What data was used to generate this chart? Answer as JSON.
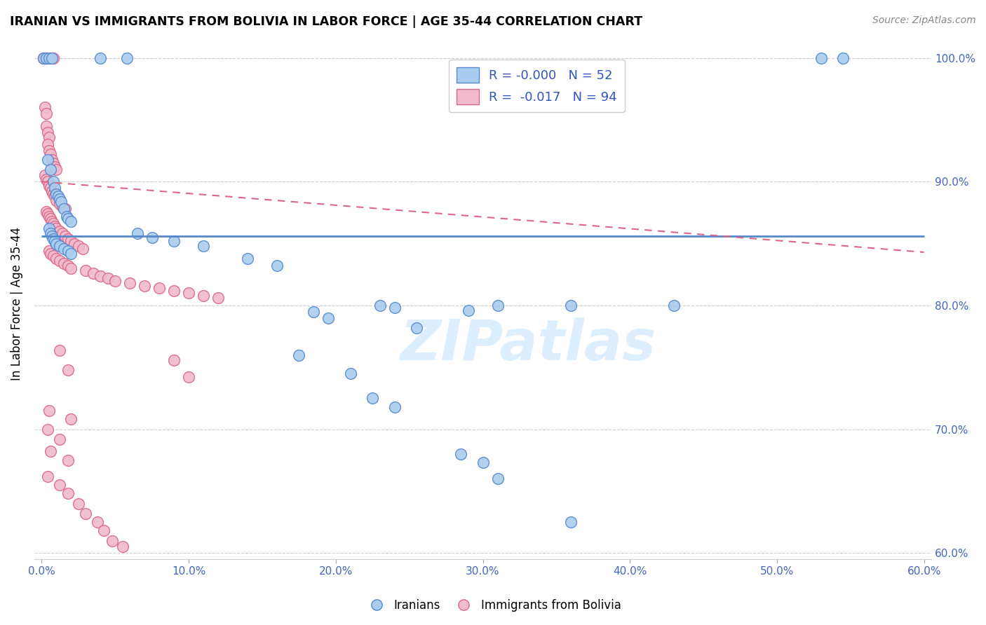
{
  "title": "IRANIAN VS IMMIGRANTS FROM BOLIVIA IN LABOR FORCE | AGE 35-44 CORRELATION CHART",
  "source": "Source: ZipAtlas.com",
  "ylabel": "In Labor Force | Age 35-44",
  "xlim": [
    -0.005,
    0.605
  ],
  "ylim": [
    0.595,
    1.008
  ],
  "xticks": [
    0.0,
    0.1,
    0.2,
    0.3,
    0.4,
    0.5,
    0.6
  ],
  "xticklabels": [
    "0.0%",
    "10.0%",
    "20.0%",
    "30.0%",
    "40.0%",
    "50.0%",
    "60.0%"
  ],
  "yticks": [
    0.6,
    0.7,
    0.8,
    0.9,
    1.0
  ],
  "yticklabels_right": [
    "60.0%",
    "70.0%",
    "80.0%",
    "90.0%",
    "100.0%"
  ],
  "blue_color": "#5588cc",
  "pink_color": "#dd6688",
  "blue_fill": "#aaccee",
  "pink_fill": "#f0bbcc",
  "watermark": "ZIPatlas",
  "blue_R": -0.0,
  "pink_R": -0.017,
  "blue_N": 52,
  "pink_N": 94,
  "blue_line_y0": 0.856,
  "blue_line_y1": 0.856,
  "pink_line_y0": 0.9,
  "pink_line_y1": 0.843,
  "blue_points": [
    [
      0.001,
      1.0
    ],
    [
      0.003,
      1.0
    ],
    [
      0.005,
      1.0
    ],
    [
      0.007,
      1.0
    ],
    [
      0.04,
      1.0
    ],
    [
      0.058,
      1.0
    ],
    [
      0.53,
      1.0
    ],
    [
      0.545,
      1.0
    ],
    [
      0.004,
      0.918
    ],
    [
      0.006,
      0.91
    ],
    [
      0.008,
      0.9
    ],
    [
      0.009,
      0.895
    ],
    [
      0.01,
      0.89
    ],
    [
      0.011,
      0.888
    ],
    [
      0.012,
      0.886
    ],
    [
      0.013,
      0.884
    ],
    [
      0.015,
      0.878
    ],
    [
      0.017,
      0.872
    ],
    [
      0.018,
      0.87
    ],
    [
      0.02,
      0.868
    ],
    [
      0.005,
      0.862
    ],
    [
      0.006,
      0.858
    ],
    [
      0.007,
      0.856
    ],
    [
      0.008,
      0.854
    ],
    [
      0.009,
      0.852
    ],
    [
      0.01,
      0.85
    ],
    [
      0.012,
      0.848
    ],
    [
      0.015,
      0.846
    ],
    [
      0.018,
      0.844
    ],
    [
      0.02,
      0.842
    ],
    [
      0.065,
      0.858
    ],
    [
      0.075,
      0.855
    ],
    [
      0.09,
      0.852
    ],
    [
      0.11,
      0.848
    ],
    [
      0.14,
      0.838
    ],
    [
      0.16,
      0.832
    ],
    [
      0.185,
      0.795
    ],
    [
      0.195,
      0.79
    ],
    [
      0.23,
      0.8
    ],
    [
      0.24,
      0.798
    ],
    [
      0.255,
      0.782
    ],
    [
      0.29,
      0.796
    ],
    [
      0.31,
      0.8
    ],
    [
      0.36,
      0.8
    ],
    [
      0.43,
      0.8
    ],
    [
      0.175,
      0.76
    ],
    [
      0.21,
      0.745
    ],
    [
      0.225,
      0.725
    ],
    [
      0.24,
      0.718
    ],
    [
      0.285,
      0.68
    ],
    [
      0.3,
      0.673
    ],
    [
      0.31,
      0.66
    ],
    [
      0.36,
      0.625
    ]
  ],
  "pink_points": [
    [
      0.001,
      1.0
    ],
    [
      0.001,
      1.0
    ],
    [
      0.002,
      1.0
    ],
    [
      0.002,
      1.0
    ],
    [
      0.003,
      1.0
    ],
    [
      0.003,
      1.0
    ],
    [
      0.004,
      1.0
    ],
    [
      0.005,
      1.0
    ],
    [
      0.006,
      1.0
    ],
    [
      0.007,
      1.0
    ],
    [
      0.008,
      1.0
    ],
    [
      0.002,
      0.96
    ],
    [
      0.003,
      0.955
    ],
    [
      0.003,
      0.945
    ],
    [
      0.004,
      0.94
    ],
    [
      0.005,
      0.936
    ],
    [
      0.004,
      0.93
    ],
    [
      0.005,
      0.925
    ],
    [
      0.006,
      0.922
    ],
    [
      0.007,
      0.918
    ],
    [
      0.008,
      0.915
    ],
    [
      0.009,
      0.912
    ],
    [
      0.01,
      0.91
    ],
    [
      0.002,
      0.905
    ],
    [
      0.003,
      0.902
    ],
    [
      0.004,
      0.9
    ],
    [
      0.005,
      0.897
    ],
    [
      0.006,
      0.895
    ],
    [
      0.007,
      0.892
    ],
    [
      0.008,
      0.89
    ],
    [
      0.009,
      0.888
    ],
    [
      0.01,
      0.885
    ],
    [
      0.012,
      0.882
    ],
    [
      0.014,
      0.88
    ],
    [
      0.016,
      0.878
    ],
    [
      0.003,
      0.876
    ],
    [
      0.004,
      0.874
    ],
    [
      0.005,
      0.872
    ],
    [
      0.006,
      0.87
    ],
    [
      0.007,
      0.868
    ],
    [
      0.008,
      0.866
    ],
    [
      0.009,
      0.864
    ],
    [
      0.01,
      0.862
    ],
    [
      0.012,
      0.86
    ],
    [
      0.014,
      0.858
    ],
    [
      0.016,
      0.856
    ],
    [
      0.018,
      0.854
    ],
    [
      0.02,
      0.852
    ],
    [
      0.022,
      0.85
    ],
    [
      0.025,
      0.848
    ],
    [
      0.028,
      0.846
    ],
    [
      0.005,
      0.844
    ],
    [
      0.006,
      0.842
    ],
    [
      0.008,
      0.84
    ],
    [
      0.01,
      0.838
    ],
    [
      0.012,
      0.836
    ],
    [
      0.015,
      0.834
    ],
    [
      0.018,
      0.832
    ],
    [
      0.02,
      0.83
    ],
    [
      0.03,
      0.828
    ],
    [
      0.035,
      0.826
    ],
    [
      0.04,
      0.824
    ],
    [
      0.045,
      0.822
    ],
    [
      0.05,
      0.82
    ],
    [
      0.06,
      0.818
    ],
    [
      0.07,
      0.816
    ],
    [
      0.08,
      0.814
    ],
    [
      0.09,
      0.812
    ],
    [
      0.1,
      0.81
    ],
    [
      0.11,
      0.808
    ],
    [
      0.12,
      0.806
    ],
    [
      0.012,
      0.764
    ],
    [
      0.09,
      0.756
    ],
    [
      0.018,
      0.748
    ],
    [
      0.1,
      0.742
    ],
    [
      0.005,
      0.715
    ],
    [
      0.02,
      0.708
    ],
    [
      0.004,
      0.7
    ],
    [
      0.012,
      0.692
    ],
    [
      0.006,
      0.682
    ],
    [
      0.018,
      0.675
    ],
    [
      0.004,
      0.662
    ],
    [
      0.012,
      0.655
    ],
    [
      0.018,
      0.648
    ],
    [
      0.025,
      0.64
    ],
    [
      0.03,
      0.632
    ],
    [
      0.038,
      0.625
    ],
    [
      0.042,
      0.618
    ],
    [
      0.048,
      0.61
    ],
    [
      0.055,
      0.605
    ]
  ]
}
